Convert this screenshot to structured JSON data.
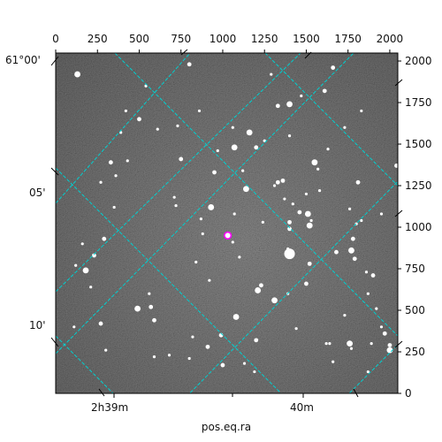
{
  "chart_data": {
    "type": "scatter",
    "title": "",
    "xlabel": "pos.eq.ra",
    "ylabel": "",
    "pixel_axes": {
      "x_ticks": [
        "0",
        "250",
        "500",
        "750",
        "1000",
        "1250",
        "1500",
        "1750",
        "2000"
      ],
      "x_tick_values": [
        0,
        250,
        500,
        750,
        1000,
        1250,
        1500,
        1750,
        2000
      ],
      "xlim": [
        0,
        2048
      ],
      "y_ticks": [
        "0",
        "250",
        "500",
        "750",
        "1000",
        "1250",
        "1500",
        "1750",
        "2000"
      ],
      "y_tick_values": [
        0,
        250,
        500,
        750,
        1000,
        1250,
        1500,
        1750,
        2000
      ],
      "ylim": [
        0,
        2048
      ]
    },
    "world_axes": {
      "ra_ticks": [
        "2h39m",
        "40m"
      ],
      "dec_ticks": [
        "61°00'",
        "05'",
        "10'"
      ]
    },
    "grid": true,
    "grid_color": "#00d0d0",
    "marker": {
      "x": 1030,
      "y": 950,
      "color": "#ff00ff"
    },
    "stars": {
      "x": [
        130,
        420,
        860,
        1660,
        1830,
        1290,
        500,
        1400,
        1470,
        1610,
        730,
        610,
        330,
        430,
        1550,
        750,
        1570,
        1120,
        2040,
        390,
        970,
        1070,
        1400,
        1630,
        1200,
        360,
        270,
        950,
        1140,
        1310,
        1360,
        1370,
        1420,
        1460,
        1500,
        1510,
        1330,
        870,
        1240,
        1400,
        710,
        720,
        930,
        1060,
        1530,
        1780,
        1800,
        160,
        290,
        1520,
        880,
        1680,
        1830,
        1070,
        1400,
        1100,
        1770,
        230,
        120,
        840,
        1520,
        1860,
        1950,
        180,
        920,
        1390,
        1230,
        210,
        560,
        1790,
        1210,
        1390,
        570,
        1870,
        1730,
        1970,
        110,
        490,
        270,
        820,
        1440,
        910,
        1620,
        1770,
        2000,
        590,
        1870,
        1200,
        1640,
        1920,
        1500,
        1080,
        1950,
        990,
        1660,
        300,
        1000,
        1190,
        1760,
        590,
        1890,
        1130,
        2000,
        800,
        680,
        1310,
        1580,
        1760,
        1900,
        540,
        1060,
        1810,
        1160,
        350,
        800,
        1250,
        1730,
        1330
      ],
      "y": [
        1920,
        1700,
        1700,
        1960,
        1700,
        1920,
        1650,
        1740,
        1790,
        1820,
        1610,
        1590,
        1390,
        1400,
        1390,
        1410,
        1350,
        1340,
        1370,
        1570,
        1460,
        1480,
        1550,
        1470,
        1480,
        1310,
        1270,
        1330,
        1230,
        1250,
        1280,
        1170,
        1140,
        1090,
        1200,
        1080,
        1270,
        1050,
        1030,
        1030,
        1180,
        1130,
        1120,
        910,
        1040,
        930,
        1020,
        900,
        930,
        1010,
        960,
        850,
        1040,
        1080,
        990,
        820,
        860,
        830,
        770,
        790,
        780,
        730,
        1080,
        740,
        680,
        870,
        650,
        640,
        600,
        810,
        620,
        600,
        520,
        600,
        470,
        360,
        400,
        510,
        420,
        340,
        390,
        280,
        300,
        270,
        260,
        220,
        130,
        320,
        300,
        510,
        660,
        460,
        400,
        350,
        190,
        260,
        170,
        130,
        300,
        440,
        300,
        180,
        290,
        210,
        230,
        560,
        1220,
        1110,
        710,
        1850,
        1600,
        1270,
        1570,
        1120,
        1980,
        1520,
        1600,
        1730
      ]
    }
  }
}
